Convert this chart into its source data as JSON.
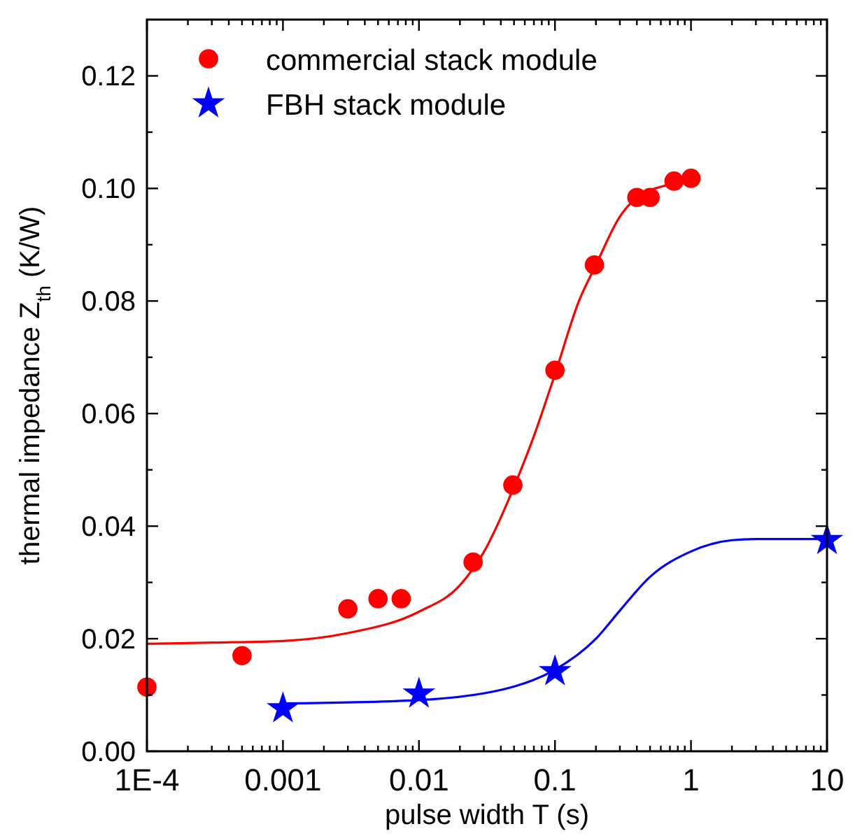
{
  "chart_data": {
    "type": "scatter",
    "xlabel": "pulse width  T (s)",
    "ylabel": "thermal impedance  Z$_{th}$ (K/W)",
    "log": "x",
    "xlim": [
      0.0001,
      10
    ],
    "ylim": [
      0,
      0.13
    ],
    "xticks": [
      {
        "value": 0.0001,
        "label": "1E-4"
      },
      {
        "value": 0.0002,
        "label": null
      },
      {
        "value": 0.0003,
        "label": null
      },
      {
        "value": 0.0004,
        "label": null
      },
      {
        "value": 0.0005,
        "label": null
      },
      {
        "value": 0.0006,
        "label": null
      },
      {
        "value": 0.0007,
        "label": null
      },
      {
        "value": 0.0008,
        "label": null
      },
      {
        "value": 0.0009,
        "label": null
      },
      0.001,
      {
        "value": 0.002,
        "label": null
      },
      {
        "value": 0.003,
        "label": null
      },
      {
        "value": 0.004,
        "label": null
      },
      {
        "value": 0.005,
        "label": null
      },
      {
        "value": 0.006,
        "label": null
      },
      {
        "value": 0.007,
        "label": null
      },
      {
        "value": 0.008,
        "label": null
      },
      {
        "value": 0.009,
        "label": null
      },
      0.01,
      {
        "value": 0.02,
        "label": null
      },
      {
        "value": 0.03,
        "label": null
      },
      {
        "value": 0.04,
        "label": null
      },
      {
        "value": 0.05,
        "label": null
      },
      {
        "value": 0.06,
        "label": null
      },
      {
        "value": 0.07,
        "label": null
      },
      {
        "value": 0.08,
        "label": null
      },
      {
        "value": 0.09,
        "label": null
      },
      0.1,
      {
        "value": 0.2,
        "label": null
      },
      {
        "value": 0.3,
        "label": null
      },
      {
        "value": 0.4,
        "label": null
      },
      {
        "value": 0.5,
        "label": null
      },
      {
        "value": 0.6,
        "label": null
      },
      {
        "value": 0.7,
        "label": null
      },
      {
        "value": 0.8,
        "label": null
      },
      {
        "value": 0.9,
        "label": null
      },
      1,
      {
        "value": 2,
        "label": null
      },
      {
        "value": 3,
        "label": null
      },
      {
        "value": 4,
        "label": null
      },
      {
        "value": 5,
        "label": null
      },
      {
        "value": 6,
        "label": null
      },
      {
        "value": 7,
        "label": null
      },
      {
        "value": 8,
        "label": null
      },
      {
        "value": 9,
        "label": null
      },
      10
    ],
    "yticks": [
      {
        "value": 0,
        "label": "0.00"
      },
      {
        "value": 0.01,
        "label": null
      },
      0.02,
      {
        "value": 0.03,
        "label": null
      },
      0.04,
      {
        "value": 0.05,
        "label": null
      },
      0.06,
      {
        "value": 0.07,
        "label": null
      },
      0.08,
      {
        "value": 0.09,
        "label": null
      },
      {
        "value": 0.1,
        "label": "0.10"
      },
      {
        "value": 0.11,
        "label": null
      },
      0.12
    ],
    "grid": false,
    "legend": "top left",
    "series": [
      {
        "name": "commercial stack module",
        "color": "#ff0000",
        "marker": "circle",
        "x": [
          0.0001,
          0.0005,
          0.003,
          0.005,
          0.0074,
          0.025,
          0.049,
          0.1,
          0.195,
          0.4,
          0.5,
          0.75,
          1.0
        ],
        "values": [
          0.0114,
          0.017,
          0.0253,
          0.0271,
          0.0271,
          0.0336,
          0.0473,
          0.0677,
          0.0864,
          0.0984,
          0.0984,
          0.1013,
          0.1018
        ]
      },
      {
        "name": "FBH stack module",
        "color": "#0000ff",
        "marker": "star",
        "x": [
          0.001,
          0.01,
          0.1,
          10
        ],
        "values": [
          0.0076,
          0.0102,
          0.0142,
          0.0375
        ]
      },
      {
        "type": "line",
        "color": "#ff0000",
        "marker": "none",
        "x": [
          0.0001,
          0.0003,
          0.001,
          0.003,
          0.01,
          0.02,
          0.03,
          0.05,
          0.07,
          0.1,
          0.15,
          0.2,
          0.3,
          0.4,
          0.6,
          1.0
        ],
        "values": [
          0.0191,
          0.0193,
          0.0196,
          0.021,
          0.0248,
          0.0295,
          0.0354,
          0.047,
          0.056,
          0.067,
          0.08,
          0.0864,
          0.095,
          0.0984,
          0.1003,
          0.1012
        ]
      },
      {
        "type": "line",
        "color": "#0000ff",
        "marker": "none",
        "x": [
          0.001,
          0.01,
          0.05,
          0.1,
          0.2,
          0.3,
          0.5,
          1,
          2,
          3,
          10
        ],
        "values": [
          0.0085,
          0.0091,
          0.0115,
          0.0145,
          0.02,
          0.025,
          0.031,
          0.0355,
          0.0375,
          0.0377,
          0.0377
        ]
      }
    ]
  }
}
